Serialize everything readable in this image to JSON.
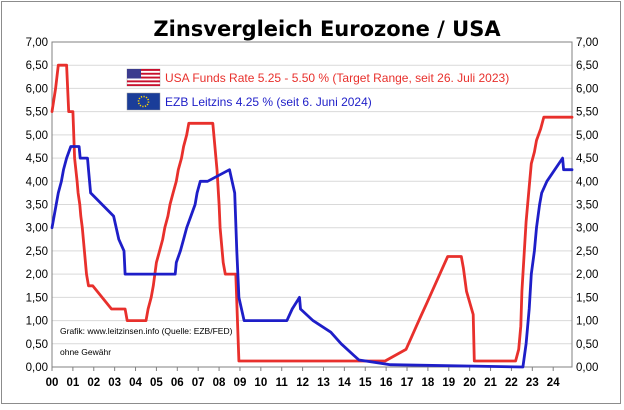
{
  "chart_data": {
    "type": "line",
    "title": "Zinsvergleich Eurozone / USA",
    "xlabel": "",
    "ylabel": "",
    "xlim": [
      2000,
      2024.9
    ],
    "ylim": [
      0,
      7
    ],
    "y_ticks": [
      "0,00",
      "0,50",
      "1,00",
      "1,50",
      "2,00",
      "2,50",
      "3,00",
      "3,50",
      "4,00",
      "4,50",
      "5,00",
      "5,50",
      "6,00",
      "6,50",
      "7,00"
    ],
    "x_ticks": [
      "00",
      "01",
      "02",
      "03",
      "04",
      "05",
      "06",
      "07",
      "08",
      "09",
      "10",
      "11",
      "12",
      "13",
      "14",
      "15",
      "16",
      "17",
      "18",
      "19",
      "20",
      "21",
      "22",
      "23",
      "24"
    ],
    "grid": true,
    "series": [
      {
        "name": "USA Funds Rate 5.25 - 5.50 % (Target Range, seit 26. Juli 2023)",
        "color": "#e8302c",
        "x": [
          2000.0,
          2000.17,
          2000.3,
          2000.7,
          2000.8,
          2001.0,
          2001.08,
          2001.2,
          2001.25,
          2001.33,
          2001.38,
          2001.45,
          2001.55,
          2001.65,
          2001.75,
          2001.85,
          2001.95,
          2002.85,
          2003.0,
          2003.5,
          2003.6,
          2004.5,
          2004.6,
          2004.75,
          2004.85,
          2005.0,
          2005.15,
          2005.3,
          2005.4,
          2005.55,
          2005.65,
          2005.8,
          2005.95,
          2006.05,
          2006.2,
          2006.3,
          2006.45,
          2006.55,
          2007.7,
          2007.8,
          2007.9,
          2008.0,
          2008.05,
          2008.2,
          2008.3,
          2008.8,
          2008.95,
          2015.95,
          2016.95,
          2017.2,
          2017.45,
          2017.7,
          2017.95,
          2018.2,
          2018.45,
          2018.7,
          2018.95,
          2019.6,
          2019.7,
          2019.85,
          2020.17,
          2020.22,
          2022.2,
          2022.35,
          2022.45,
          2022.5,
          2022.6,
          2022.7,
          2022.85,
          2022.95,
          2023.1,
          2023.2,
          2023.4,
          2023.55,
          2024.9
        ],
        "values": [
          5.5,
          6.0,
          6.5,
          6.5,
          5.5,
          5.5,
          4.5,
          4.0,
          3.75,
          3.5,
          3.25,
          3.0,
          2.5,
          2.0,
          1.75,
          1.75,
          1.75,
          1.25,
          1.25,
          1.25,
          1.0,
          1.0,
          1.25,
          1.5,
          1.75,
          2.25,
          2.5,
          2.75,
          3.0,
          3.25,
          3.5,
          3.75,
          4.0,
          4.25,
          4.5,
          4.75,
          5.0,
          5.25,
          5.25,
          4.75,
          4.25,
          3.5,
          3.0,
          2.25,
          2.0,
          2.0,
          0.13,
          0.13,
          0.38,
          0.63,
          0.88,
          1.13,
          1.38,
          1.63,
          1.88,
          2.13,
          2.38,
          2.38,
          2.13,
          1.63,
          1.13,
          0.13,
          0.13,
          0.38,
          0.88,
          1.63,
          2.38,
          3.13,
          3.88,
          4.38,
          4.63,
          4.88,
          5.13,
          5.38,
          5.38
        ]
      },
      {
        "name": "EZB Leitzins 4.25 %  (seit 6. Juni 2024)",
        "color": "#1e1ec8",
        "x": [
          2000.0,
          2000.1,
          2000.2,
          2000.3,
          2000.45,
          2000.55,
          2000.7,
          2000.9,
          2001.3,
          2001.35,
          2001.7,
          2001.75,
          2001.85,
          2002.95,
          2003.2,
          2003.45,
          2003.5,
          2005.9,
          2005.95,
          2006.15,
          2006.3,
          2006.45,
          2006.65,
          2006.85,
          2006.95,
          2007.1,
          2007.45,
          2008.5,
          2008.75,
          2008.85,
          2008.95,
          2009.2,
          2011.25,
          2011.5,
          2011.85,
          2011.9,
          2012.5,
          2013.35,
          2013.85,
          2014.45,
          2014.7,
          2016.2,
          2022.55,
          2022.7,
          2022.85,
          2022.95,
          2023.1,
          2023.2,
          2023.35,
          2023.45,
          2023.7,
          2024.45,
          2024.5,
          2024.9
        ],
        "values": [
          3.0,
          3.25,
          3.5,
          3.75,
          4.0,
          4.25,
          4.5,
          4.75,
          4.75,
          4.5,
          4.5,
          4.25,
          3.75,
          3.25,
          2.75,
          2.5,
          2.0,
          2.0,
          2.25,
          2.5,
          2.75,
          3.0,
          3.25,
          3.5,
          3.75,
          4.0,
          4.0,
          4.25,
          3.75,
          2.5,
          1.5,
          1.0,
          1.0,
          1.25,
          1.5,
          1.25,
          1.0,
          0.75,
          0.5,
          0.25,
          0.15,
          0.05,
          0.0,
          0.5,
          1.25,
          2.0,
          2.5,
          3.0,
          3.5,
          3.75,
          4.0,
          4.5,
          4.25,
          4.25
        ]
      }
    ],
    "annotations": [
      "Grafik: www.leitzinsen.info (Quelle: EZB/FED)",
      "ohne Gewähr"
    ]
  },
  "colors": {
    "us_series": "#e8302c",
    "ecb_series": "#1e1ec8",
    "grid": "#d9d9d9",
    "frame": "#8c8c8c",
    "eu_flag": "#1a3d99"
  },
  "icons": {
    "us_legend": "us-flag-icon",
    "ecb_legend": "eu-flag-icon"
  }
}
